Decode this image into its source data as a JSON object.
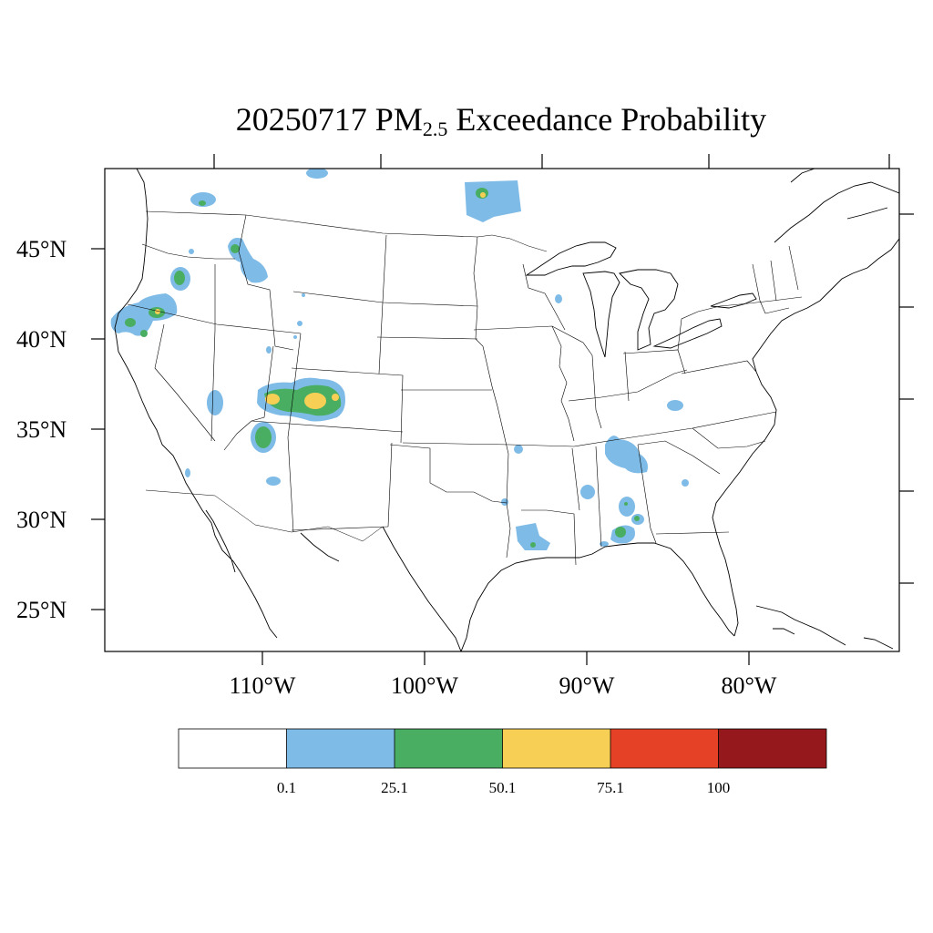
{
  "title": {
    "prefix": "20250717 PM",
    "subscript": "2.5",
    "suffix": " Exceedance Probability"
  },
  "axes": {
    "lat_labels": [
      "45°N",
      "40°N",
      "35°N",
      "30°N",
      "25°N"
    ],
    "lon_labels": [
      "110°W",
      "100°W",
      "90°W",
      "80°W"
    ]
  },
  "colorbar": {
    "colors": [
      "#ffffff",
      "#7fbbe7",
      "#4aae62",
      "#f8cf55",
      "#e44127",
      "#94181c"
    ],
    "labels": [
      "0.1",
      "25.1",
      "50.1",
      "75.1",
      "100"
    ]
  },
  "colors": {
    "blue": "#7fbbe7",
    "green": "#4aae62",
    "yellow": "#f8cf55"
  }
}
